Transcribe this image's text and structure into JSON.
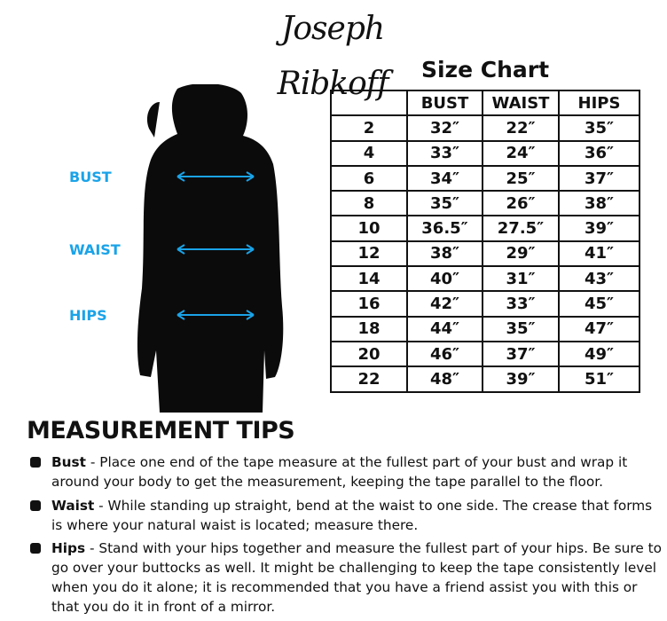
{
  "brand": {
    "logo_text": "Joseph Ribkoff"
  },
  "size_chart": {
    "title": "Size Chart",
    "headers": [
      "",
      "BUST",
      "WAIST",
      "HIPS"
    ],
    "rows": [
      [
        "2",
        "32″",
        "22″",
        "35″"
      ],
      [
        "4",
        "33″",
        "24″",
        "36″"
      ],
      [
        "6",
        "34″",
        "25″",
        "37″"
      ],
      [
        "8",
        "35″",
        "26″",
        "38″"
      ],
      [
        "10",
        "36.5″",
        "27.5″",
        "39″"
      ],
      [
        "12",
        "38″",
        "29″",
        "41″"
      ],
      [
        "14",
        "40″",
        "31″",
        "43″"
      ],
      [
        "16",
        "42″",
        "33″",
        "45″"
      ],
      [
        "18",
        "44″",
        "35″",
        "47″"
      ],
      [
        "20",
        "46″",
        "37″",
        "49″"
      ],
      [
        "22",
        "48″",
        "39″",
        "51″"
      ]
    ]
  },
  "figure": {
    "labels": [
      "BUST",
      "WAIST",
      "HIPS"
    ],
    "accent_color": "#1aa3e8"
  },
  "tips": {
    "title": "MEASUREMENT TIPS",
    "items": [
      {
        "term": "Bust",
        "text": " - Place one end of the tape measure at the fullest part of your bust and wrap it around your body to get the measurement, keeping the tape parallel to the floor."
      },
      {
        "term": "Waist",
        "text": " - While standing up straight, bend at the waist to one side. The crease that forms is where your natural waist is located; measure there."
      },
      {
        "term": "Hips",
        "text": " - Stand with your hips together and measure the fullest part of your hips. Be sure to go over your buttocks as well. It might be challenging to keep the tape consistently level when you do it alone; it is recommended that you have a friend assist you with this or that you do it in front of a mirror."
      }
    ]
  }
}
